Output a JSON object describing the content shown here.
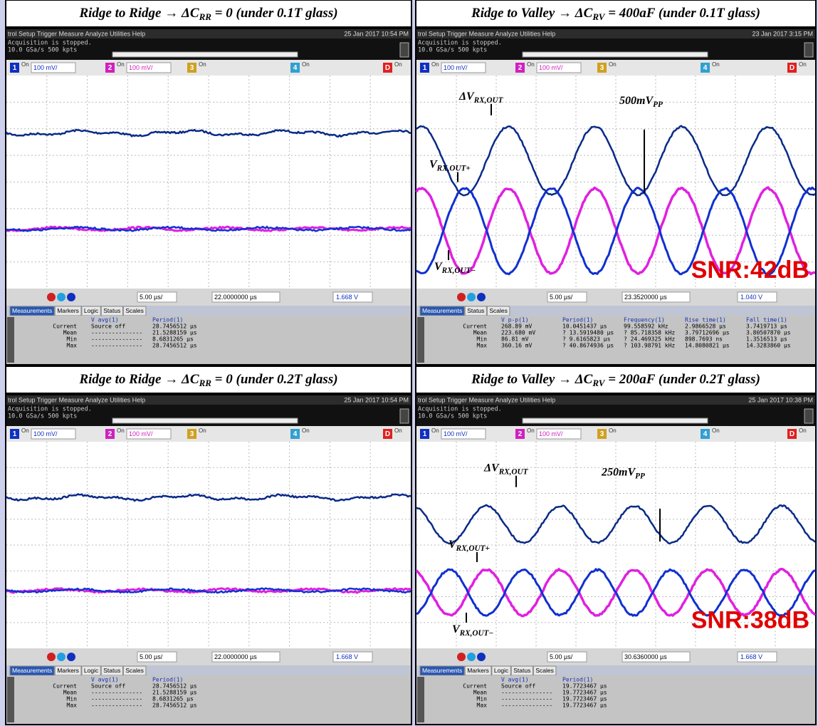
{
  "panels": [
    {
      "title": {
        "pre": "Ridge to Ridge → ΔC",
        "sub": "RR",
        "post": " = 0 (under 0.1T glass)"
      },
      "menu": "trol  Setup  Trigger  Measure  Analyze  Utilities  Help",
      "date": "25 Jan 2017 10:54 PM",
      "status": [
        "Acquisition is stopped.",
        "10.0 GSa/s   500 kpts"
      ],
      "channels": [
        {
          "num": "1",
          "state": "On",
          "scale": "100 mV/"
        },
        {
          "num": "2",
          "state": "On",
          "scale": "100 mV/"
        },
        {
          "num": "3",
          "state": "On"
        },
        {
          "num": "4",
          "state": "On"
        },
        {
          "num": "D",
          "state": "On"
        }
      ],
      "timebase": "5.00 µs/",
      "delay": "22.0000000 µs",
      "trigger": "1.668 V",
      "tabs": [
        "Measurements",
        "Markers",
        "Logic",
        "Status",
        "Scales"
      ],
      "measurements": {
        "header": [
          "V avg(1)",
          "Period(1)"
        ],
        "rows": [
          [
            "Current",
            "Source off",
            "28.7456512 µs"
          ],
          [
            "Mean",
            "---------------",
            "21.5288159 µs"
          ],
          [
            "Min",
            "---------------",
            "8.6831265 µs"
          ],
          [
            "Max",
            "---------------",
            "28.7456512 µs"
          ]
        ]
      }
    },
    {
      "title": {
        "pre": "Ridge to Valley → ΔC",
        "sub": "RV",
        "post": " = 400aF (under 0.1T glass)"
      },
      "menu": "trol  Setup  Trigger  Measure  Analyze  Utilities  Help",
      "date": "23 Jan 2017  3:15 PM",
      "status": [
        "Acquisition is stopped.",
        "10.0 GSa/s   500 kpts"
      ],
      "channels": [
        {
          "num": "1",
          "state": "On",
          "scale": "100 mV/"
        },
        {
          "num": "2",
          "state": "On",
          "scale": "100 mV/"
        },
        {
          "num": "3",
          "state": "On"
        },
        {
          "num": "4",
          "state": "On"
        },
        {
          "num": "D",
          "state": "On"
        }
      ],
      "timebase": "5.00 µs/",
      "delay": "23.3520000 µs",
      "trigger": "1.040 V",
      "tabs": [
        "Measurements",
        "Status",
        "Scales"
      ],
      "measurements": {
        "header": [
          "V p-p(1)",
          "Period(1)",
          "Frequency(1)",
          "Rise time(1)",
          "Fall time(1)"
        ],
        "rows": [
          [
            "Current",
            "268.89 mV",
            "10.0451437 µs",
            "99.558592 kHz",
            "2.9866528 µs",
            "3.7419713 µs"
          ],
          [
            "Mean",
            "223.680 mV",
            "? 13.5919480 µs",
            "? 85.718358 kHz",
            "3.79712696 µs",
            "3.80507870 µs"
          ],
          [
            "Min",
            "86.81 mV",
            "? 9.6165823 µs",
            "? 24.469325 kHz",
            "898.7693 ns",
            "1.3516513 µs"
          ],
          [
            "Max",
            "360.16 mV",
            "? 40.8674936 µs",
            "? 103.98791 kHz",
            "14.8080821 µs",
            "14.3283860 µs"
          ]
        ]
      },
      "annotations": [
        {
          "base": "ΔV",
          "sub": "RX,OUT"
        },
        {
          "base": "500mV",
          "sub": "PP"
        },
        {
          "base": "V",
          "sub": "RX,OUT+"
        },
        {
          "base": "V",
          "sub": "RX,OUT−"
        }
      ],
      "snr": "SNR:42dB"
    },
    {
      "title": {
        "pre": "Ridge to Ridge → ΔC",
        "sub": "RR",
        "post": " = 0 (under 0.2T glass)"
      },
      "menu": "trol  Setup  Trigger  Measure  Analyze  Utilities  Help",
      "date": "25 Jan 2017 10:54 PM",
      "status": [
        "Acquisition is stopped.",
        "10.0 GSa/s   500 kpts"
      ],
      "channels": [
        {
          "num": "1",
          "state": "On",
          "scale": "100 mV/"
        },
        {
          "num": "2",
          "state": "On",
          "scale": "100 mV/"
        },
        {
          "num": "3",
          "state": "On"
        },
        {
          "num": "4",
          "state": "On"
        },
        {
          "num": "D",
          "state": "On"
        }
      ],
      "timebase": "5.00 µs/",
      "delay": "22.0000000 µs",
      "trigger": "1.668 V",
      "tabs": [
        "Measurements",
        "Markers",
        "Logic",
        "Status",
        "Scales"
      ],
      "measurements": {
        "header": [
          "V avg(1)",
          "Period(1)"
        ],
        "rows": [
          [
            "Current",
            "Source off",
            "28.7456512 µs"
          ],
          [
            "Mean",
            "---------------",
            "21.5288159 µs"
          ],
          [
            "Min",
            "---------------",
            "8.6831265 µs"
          ],
          [
            "Max",
            "---------------",
            "28.7456512 µs"
          ]
        ]
      }
    },
    {
      "title": {
        "pre": "Ridge to Valley → ΔC",
        "sub": "RV",
        "post": " = 200aF (under 0.2T glass)"
      },
      "menu": "trol  Setup  Trigger  Measure  Analyze  Utilities  Help",
      "date": "25 Jan 2017 10:38 PM",
      "status": [
        "Acquisition is stopped.",
        "10.0 GSa/s   500 kpts"
      ],
      "channels": [
        {
          "num": "1",
          "state": "On",
          "scale": "100 mV/"
        },
        {
          "num": "2",
          "state": "On",
          "scale": "100 mV/"
        },
        {
          "num": "3",
          "state": "On"
        },
        {
          "num": "4",
          "state": "On"
        },
        {
          "num": "D",
          "state": "On"
        }
      ],
      "timebase": "5.00 µs/",
      "delay": "30.6360000 µs",
      "trigger": "1.668 V",
      "tabs": [
        "Measurements",
        "Markers",
        "Logic",
        "Status",
        "Scales"
      ],
      "measurements": {
        "header": [
          "V avg(1)",
          "Period(1)"
        ],
        "rows": [
          [
            "Current",
            "Source off",
            "19.7723467 µs"
          ],
          [
            "Mean",
            "---------------",
            "19.7723467 µs"
          ],
          [
            "Min",
            "---------------",
            "19.7723467 µs"
          ],
          [
            "Max",
            "---------------",
            "19.7723467 µs"
          ]
        ]
      },
      "annotations": [
        {
          "base": "ΔV",
          "sub": "RX,OUT"
        },
        {
          "base": "250mV",
          "sub": "PP"
        },
        {
          "base": "V",
          "sub": "RX,OUT+"
        },
        {
          "base": "V",
          "sub": "RX,OUT−"
        }
      ],
      "snr": "SNR:38dB"
    }
  ]
}
